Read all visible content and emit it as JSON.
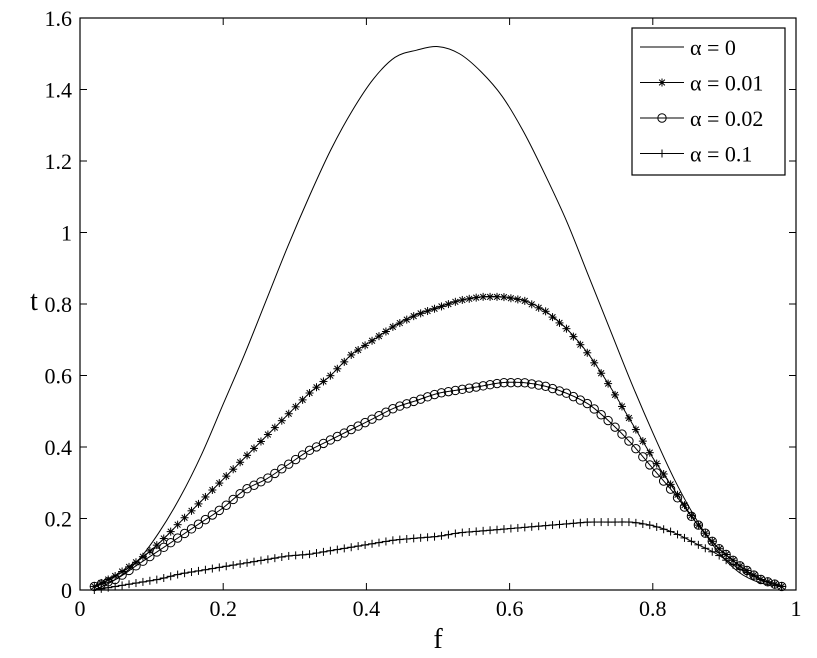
{
  "chart_data": {
    "type": "line",
    "title": "",
    "xlabel": "f",
    "ylabel": "t",
    "xlim": [
      0,
      1
    ],
    "ylim": [
      0,
      1.6
    ],
    "xticks": [
      0,
      0.2,
      0.4,
      0.6,
      0.8,
      1
    ],
    "xtick_labels": [
      "0",
      "0.2",
      "0.4",
      "0.6",
      "0.8",
      "1"
    ],
    "yticks": [
      0,
      0.2,
      0.4,
      0.6,
      0.8,
      1,
      1.2,
      1.4,
      1.6
    ],
    "ytick_labels": [
      "0",
      "0.2",
      "0.4",
      "0.6",
      "0.8",
      "1",
      "1.2",
      "1.4",
      "1.6"
    ],
    "grid": false,
    "legend_position": "top-right",
    "x": [
      0.02,
      0.05,
      0.08,
      0.11,
      0.14,
      0.17,
      0.2,
      0.23,
      0.26,
      0.29,
      0.32,
      0.35,
      0.38,
      0.41,
      0.44,
      0.47,
      0.5,
      0.53,
      0.56,
      0.59,
      0.62,
      0.65,
      0.68,
      0.71,
      0.74,
      0.77,
      0.8,
      0.83,
      0.86,
      0.89,
      0.92,
      0.95,
      0.98
    ],
    "series": [
      {
        "name": "α = 0",
        "marker": "none",
        "values": [
          0.0,
          0.03,
          0.08,
          0.16,
          0.26,
          0.38,
          0.52,
          0.66,
          0.81,
          0.96,
          1.1,
          1.23,
          1.34,
          1.43,
          1.49,
          1.51,
          1.52,
          1.5,
          1.45,
          1.38,
          1.28,
          1.16,
          1.03,
          0.88,
          0.73,
          0.58,
          0.44,
          0.31,
          0.2,
          0.11,
          0.05,
          0.02,
          0.01
        ]
      },
      {
        "name": "α = 0.01",
        "marker": "asterisk",
        "values": [
          0.01,
          0.04,
          0.08,
          0.13,
          0.19,
          0.25,
          0.31,
          0.37,
          0.43,
          0.49,
          0.55,
          0.6,
          0.66,
          0.7,
          0.74,
          0.77,
          0.79,
          0.81,
          0.82,
          0.82,
          0.81,
          0.78,
          0.73,
          0.66,
          0.57,
          0.47,
          0.37,
          0.28,
          0.19,
          0.12,
          0.07,
          0.03,
          0.01
        ]
      },
      {
        "name": "α = 0.02",
        "marker": "circle",
        "values": [
          0.01,
          0.03,
          0.07,
          0.11,
          0.15,
          0.19,
          0.23,
          0.28,
          0.31,
          0.35,
          0.39,
          0.42,
          0.45,
          0.48,
          0.51,
          0.53,
          0.55,
          0.56,
          0.57,
          0.58,
          0.58,
          0.57,
          0.55,
          0.52,
          0.47,
          0.41,
          0.34,
          0.27,
          0.19,
          0.12,
          0.07,
          0.03,
          0.01
        ]
      },
      {
        "name": "α = 0.1",
        "marker": "plus",
        "values": [
          0.0,
          0.01,
          0.02,
          0.03,
          0.045,
          0.055,
          0.065,
          0.075,
          0.085,
          0.095,
          0.1,
          0.11,
          0.12,
          0.13,
          0.14,
          0.145,
          0.15,
          0.16,
          0.165,
          0.17,
          0.175,
          0.18,
          0.185,
          0.19,
          0.19,
          0.19,
          0.18,
          0.16,
          0.13,
          0.1,
          0.06,
          0.03,
          0.01
        ]
      }
    ]
  }
}
